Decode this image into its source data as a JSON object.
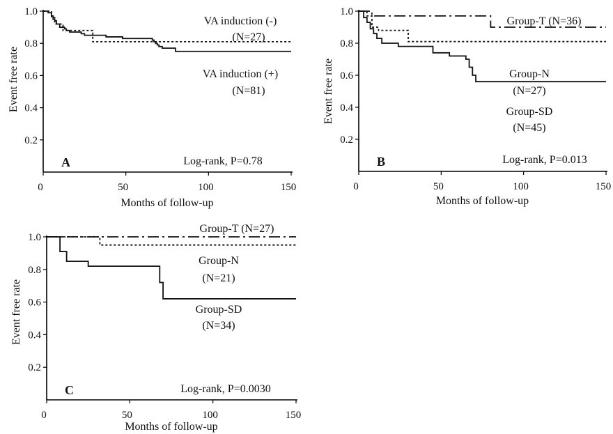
{
  "chart_data": [
    {
      "type": "line",
      "panel_label": "A",
      "xlabel": "Months of follow-up",
      "ylabel": "Event free rate",
      "xlim": [
        0,
        150
      ],
      "ylim": [
        0,
        1.0
      ],
      "x_ticks": [
        0,
        50,
        100,
        150
      ],
      "y_ticks": [
        0.2,
        0.4,
        0.6,
        0.8,
        1.0
      ],
      "annotation": "Log-rank, P=0.78",
      "series": [
        {
          "name": "VA induction (-)",
          "n_label": "(N=27)",
          "style": "dotted",
          "x": [
            0,
            5,
            7,
            12,
            30,
            150
          ],
          "y": [
            1.0,
            0.96,
            0.92,
            0.88,
            0.81,
            0.81
          ]
        },
        {
          "name": "VA induction (+)",
          "n_label": "(N=81)",
          "style": "solid",
          "x": [
            0,
            3,
            5,
            6,
            7,
            8,
            10,
            13,
            14,
            16,
            23,
            25,
            38,
            48,
            66,
            67,
            68,
            69,
            70,
            72,
            80,
            150
          ],
          "y": [
            1.0,
            0.99,
            0.97,
            0.95,
            0.94,
            0.92,
            0.9,
            0.89,
            0.88,
            0.87,
            0.86,
            0.85,
            0.84,
            0.83,
            0.82,
            0.81,
            0.8,
            0.79,
            0.78,
            0.77,
            0.75,
            0.75
          ]
        }
      ]
    },
    {
      "type": "line",
      "panel_label": "B",
      "xlabel": "Months of follow-up",
      "ylabel": "Event free rate",
      "xlim": [
        0,
        150
      ],
      "ylim": [
        0,
        1.0
      ],
      "x_ticks": [
        0,
        50,
        100,
        150
      ],
      "y_ticks": [
        0.2,
        0.4,
        0.6,
        0.8,
        1.0
      ],
      "annotation": "Log-rank, P=0.013",
      "series": [
        {
          "name": "Group-T",
          "n_label": "(N=36)",
          "style": "dashdot",
          "x": [
            0,
            8,
            80,
            150
          ],
          "y": [
            1.0,
            0.97,
            0.9,
            0.9
          ]
        },
        {
          "name": "Group-N",
          "n_label": "(N=27)",
          "style": "dotted",
          "x": [
            0,
            5,
            8,
            12,
            30,
            150
          ],
          "y": [
            1.0,
            0.97,
            0.9,
            0.88,
            0.81,
            0.81
          ]
        },
        {
          "name": "Group-SD",
          "n_label": "(N=45)",
          "style": "solid",
          "x": [
            0,
            3,
            5,
            7,
            9,
            11,
            14,
            24,
            45,
            55,
            65,
            67,
            69,
            71,
            150
          ],
          "y": [
            1.0,
            0.96,
            0.93,
            0.89,
            0.86,
            0.83,
            0.8,
            0.78,
            0.74,
            0.72,
            0.7,
            0.65,
            0.6,
            0.56,
            0.56
          ]
        }
      ]
    },
    {
      "type": "line",
      "panel_label": "C",
      "xlabel": "Months of follow-up",
      "ylabel": "Event free rate",
      "xlim": [
        0,
        150
      ],
      "ylim": [
        0,
        1.0
      ],
      "x_ticks": [
        0,
        50,
        100,
        150
      ],
      "y_ticks": [
        0.2,
        0.4,
        0.6,
        0.8,
        1.0
      ],
      "annotation": "Log-rank, P=0.0030",
      "series": [
        {
          "name": "Group-T",
          "n_label": "(N=27)",
          "style": "dashdot",
          "x": [
            0,
            150
          ],
          "y": [
            1.0,
            1.0
          ]
        },
        {
          "name": "Group-N",
          "n_label": "(N=21)",
          "style": "dotted",
          "x": [
            0,
            32,
            150
          ],
          "y": [
            1.0,
            0.95,
            0.95
          ]
        },
        {
          "name": "Group-SD",
          "n_label": "(N=34)",
          "style": "solid",
          "x": [
            0,
            8,
            12,
            25,
            68,
            70,
            150
          ],
          "y": [
            1.0,
            0.91,
            0.85,
            0.82,
            0.72,
            0.62,
            0.62
          ]
        }
      ]
    }
  ]
}
